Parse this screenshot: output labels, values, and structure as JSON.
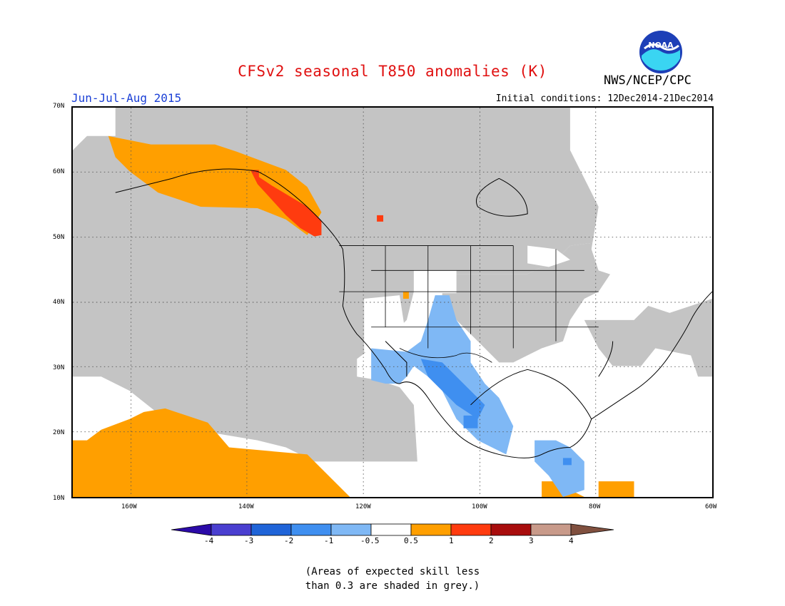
{
  "header": {
    "title": "CFSv2 seasonal T850 anomalies (K)",
    "season": "Jun-Jul-Aug 2015",
    "initial_conditions": "Initial conditions: 12Dec2014-21Dec2014",
    "agency": "NWS/NCEP/CPC",
    "logo_text": "NOAA"
  },
  "map": {
    "lat_labels": [
      "70N",
      "60N",
      "50N",
      "40N",
      "30N",
      "20N",
      "10N"
    ],
    "lon_labels": [
      "160W",
      "140W",
      "120W",
      "100W",
      "80W",
      "60W"
    ],
    "extent": {
      "lon": [
        -170,
        -60
      ],
      "lat": [
        10,
        70
      ]
    },
    "grid": "dotted every 10 degrees"
  },
  "colorbar": {
    "labels": [
      "-4",
      "-3",
      "-2",
      "-1",
      "-0.5",
      "0.5",
      "1",
      "2",
      "3",
      "4"
    ],
    "colors": [
      "#2b0aa8",
      "#4a3fd0",
      "#1f64d8",
      "#3f8ff0",
      "#7fb8f5",
      "#ffffff",
      "#ff9f00",
      "#ff3b0f",
      "#a80d0d",
      "#c89a8a",
      "#80503f"
    ]
  },
  "footnote": {
    "line1": "(Areas of expected skill less",
    "line2": "than 0.3 are shaded in grey.)"
  },
  "colors": {
    "skill_grey": "#c4c4c4",
    "warm_1": "#ff9f00",
    "warm_2": "#ff3b0f",
    "cool_1": "#7fb8f5",
    "cool_2": "#3f8ff0"
  }
}
